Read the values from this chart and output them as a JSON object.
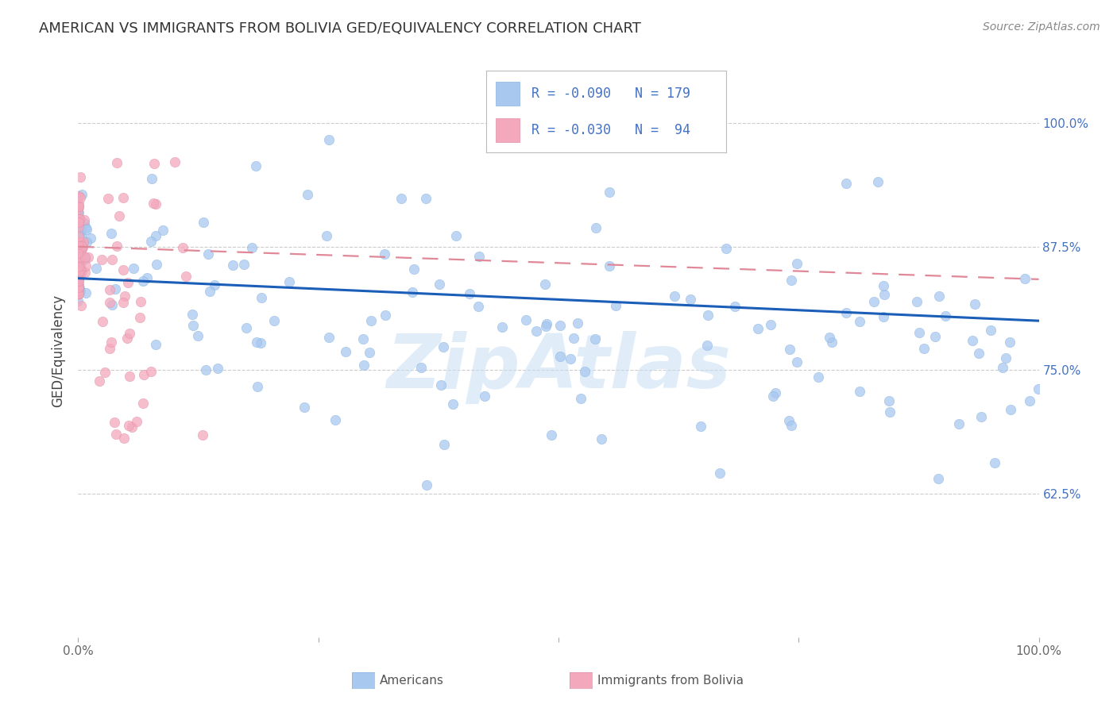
{
  "title": "AMERICAN VS IMMIGRANTS FROM BOLIVIA GED/EQUIVALENCY CORRELATION CHART",
  "source": "Source: ZipAtlas.com",
  "ylabel": "GED/Equivalency",
  "ytick_labels": [
    "100.0%",
    "87.5%",
    "75.0%",
    "62.5%"
  ],
  "ytick_values": [
    1.0,
    0.875,
    0.75,
    0.625
  ],
  "xlim": [
    0.0,
    1.0
  ],
  "ylim": [
    0.48,
    1.06
  ],
  "american_color": "#a8c8f0",
  "bolivia_color": "#f4a8bc",
  "american_line_color": "#1a5eb8",
  "bolivia_line_color": "#e08898",
  "watermark": "ZipAtlas"
}
